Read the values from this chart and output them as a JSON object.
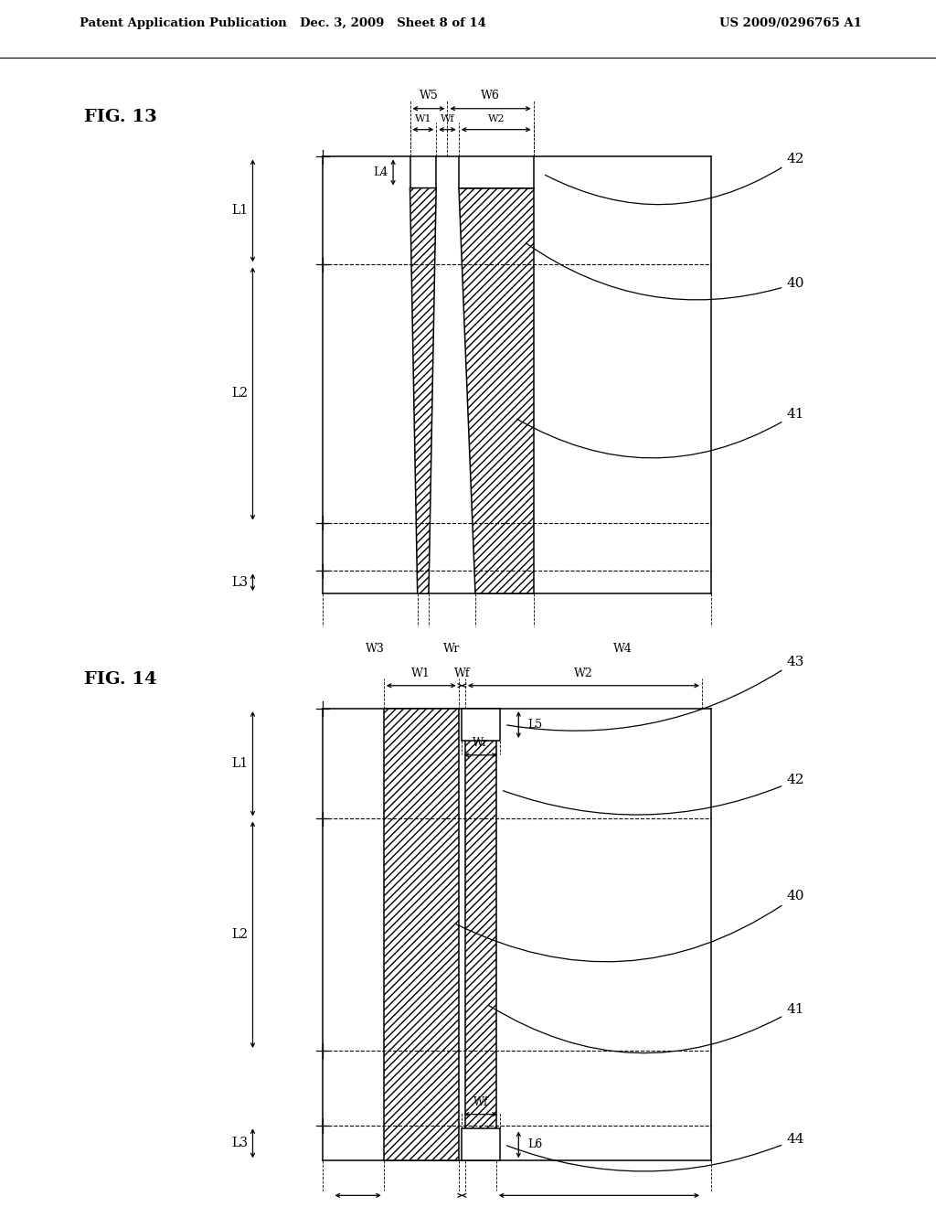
{
  "header_left": "Patent Application Publication",
  "header_mid": "Dec. 3, 2009   Sheet 8 of 14",
  "header_right": "US 2009/0296765 A1",
  "fig13_label": "FIG. 13",
  "fig14_label": "FIG. 14",
  "bg_color": "#ffffff",
  "line_color": "#000000"
}
